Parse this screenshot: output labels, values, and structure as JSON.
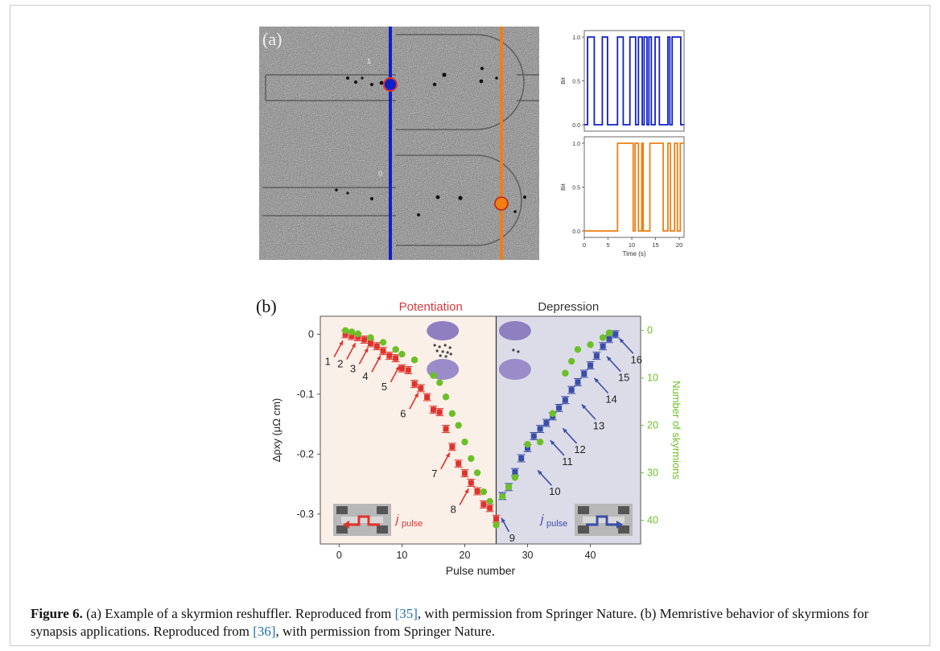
{
  "panel_a": {
    "label": "(a)",
    "image_labels": [
      "1",
      "0"
    ],
    "colors": {
      "blue": "#1020c8",
      "orange": "#f07f14"
    }
  },
  "panel_b": {
    "label": "(b)",
    "region_left_title": "Potentiation",
    "region_right_title": "Depression",
    "left_legend_label": "j",
    "left_legend_sub": "pulse",
    "right_legend_label": "j",
    "right_legend_sub": "pulse",
    "colors": {
      "red": "#e0322c",
      "blue": "#3a4ea8",
      "green": "#6cc027",
      "potentiation_bg": "#fbf0e8",
      "depression_bg": "#dcdce8"
    }
  },
  "caption": {
    "figure_label": "Figure 6.",
    "text_1": " (a) Example of a skyrmion reshuffler. Reproduced from ",
    "ref_1": "[35]",
    "text_2": ", with permission from Springer Nature. (b) Memristive behavior of skyrmions for synapsis applications. Reproduced from ",
    "ref_2": "[36]",
    "text_3": ", with permission from Springer Nature."
  },
  "chart_data": [
    {
      "type": "line",
      "panel": "a-top",
      "xlabel": "",
      "ylabel": "Bit",
      "xlim": [
        0,
        21
      ],
      "ylim": [
        0,
        1
      ],
      "yticks": [
        "0.0",
        "0.5",
        "1.0"
      ],
      "x": [
        0,
        0.7,
        0.7,
        2.1,
        2.1,
        3.8,
        3.8,
        4.9,
        4.9,
        7.0,
        7.0,
        8.2,
        8.2,
        9.6,
        9.6,
        10.8,
        10.8,
        11.4,
        11.4,
        12.2,
        12.2,
        12.6,
        12.6,
        13.2,
        13.2,
        13.6,
        13.6,
        14.1,
        14.1,
        14.9,
        14.9,
        15.8,
        15.8,
        17.6,
        17.6,
        18.0,
        18.0,
        18.5,
        18.5,
        20.3,
        20.3,
        21
      ],
      "series": [
        {
          "name": "",
          "color": "#1020c8",
          "values": [
            0,
            0,
            1,
            1,
            0,
            0,
            1,
            1,
            0,
            0,
            1,
            1,
            0,
            0,
            1,
            1,
            0,
            0,
            1,
            1,
            0,
            0,
            1,
            1,
            0,
            0,
            1,
            1,
            0,
            0,
            1,
            1,
            0,
            0,
            1,
            1,
            0,
            0,
            1,
            1,
            0,
            0
          ]
        }
      ]
    },
    {
      "type": "line",
      "panel": "a-bottom",
      "xlabel": "Time (s)",
      "ylabel": "Bit",
      "xlim": [
        0,
        21
      ],
      "ylim": [
        0,
        1
      ],
      "xticks": [
        "0",
        "5",
        "10",
        "15",
        "20"
      ],
      "yticks": [
        "0.0",
        "0.5",
        "1.0"
      ],
      "x": [
        0,
        7.0,
        7.0,
        10.3,
        10.3,
        10.7,
        10.7,
        11.4,
        11.4,
        12.1,
        12.1,
        12.4,
        12.4,
        13.8,
        13.8,
        16.6,
        16.6,
        17.6,
        17.6,
        18.1,
        18.1,
        19.0,
        19.0,
        19.6,
        19.6,
        20.2,
        20.2,
        21
      ],
      "series": [
        {
          "name": "",
          "color": "#f07f14",
          "values": [
            0,
            0,
            1,
            1,
            0,
            0,
            1,
            1,
            0,
            0,
            1,
            1,
            0,
            0,
            1,
            1,
            0,
            0,
            1,
            1,
            0,
            0,
            1,
            1,
            0,
            0,
            1,
            1
          ]
        }
      ]
    },
    {
      "type": "scatter",
      "panel": "b",
      "xlabel": "Pulse number",
      "ylabel": "Δρxy (μΩ cm)",
      "y2label": "Number of skyrmions",
      "xlim": [
        -3,
        48
      ],
      "ylim": [
        -0.35,
        0.03
      ],
      "y2lim": [
        45,
        -3
      ],
      "xticks": [
        "0",
        "10",
        "20",
        "30",
        "40"
      ],
      "yticks": [
        "0",
        "-0.1",
        "-0.2",
        "-0.3"
      ],
      "y2ticks": [
        "0",
        "10",
        "20",
        "30",
        "40"
      ],
      "divider_x": 25,
      "series": [
        {
          "name": "",
          "marker": "square",
          "axis": "left",
          "color": "#e0322c",
          "x": [
            1,
            2,
            3,
            4,
            5,
            6,
            7,
            8,
            9,
            10,
            11,
            12,
            13,
            14,
            15,
            16,
            17,
            18,
            19,
            20,
            21,
            22,
            23,
            24,
            25
          ],
          "y": [
            0,
            -0.003,
            -0.005,
            -0.009,
            -0.015,
            -0.02,
            -0.028,
            -0.036,
            -0.04,
            -0.057,
            -0.06,
            -0.083,
            -0.09,
            -0.105,
            -0.126,
            -0.13,
            -0.158,
            -0.188,
            -0.216,
            -0.232,
            -0.248,
            -0.262,
            -0.284,
            -0.29,
            -0.308
          ],
          "err": [
            0.006,
            0.006,
            0.006,
            0.006,
            0.006,
            0.006,
            0.006,
            0.006,
            0.006,
            0.006,
            0.006,
            0.006,
            0.006,
            0.006,
            0.006,
            0.006,
            0.006,
            0.006,
            0.006,
            0.006,
            0.006,
            0.006,
            0.006,
            0.006,
            0.006
          ]
        },
        {
          "name": "",
          "marker": "square",
          "axis": "left",
          "color": "#3a4ea8",
          "x": [
            26,
            27,
            28,
            29,
            30,
            31,
            32,
            33,
            34,
            35,
            36,
            37,
            38,
            39,
            40,
            41,
            42,
            43,
            44
          ],
          "y": [
            -0.27,
            -0.255,
            -0.23,
            -0.207,
            -0.19,
            -0.17,
            -0.158,
            -0.148,
            -0.137,
            -0.123,
            -0.11,
            -0.093,
            -0.08,
            -0.066,
            -0.052,
            -0.036,
            -0.02,
            -0.008,
            0
          ],
          "err": [
            0.006,
            0.006,
            0.006,
            0.006,
            0.006,
            0.006,
            0.006,
            0.006,
            0.006,
            0.006,
            0.006,
            0.006,
            0.006,
            0.006,
            0.006,
            0.006,
            0.006,
            0.006,
            0.006
          ]
        },
        {
          "name": "",
          "marker": "circle",
          "axis": "right",
          "color": "#6cc027",
          "x": [
            1,
            2,
            3,
            5,
            7,
            9,
            10,
            12,
            15,
            16,
            17,
            18,
            19,
            20,
            21,
            22,
            23,
            24,
            25,
            26,
            27,
            28,
            30,
            32,
            34,
            36,
            37,
            38,
            40,
            42,
            43
          ],
          "y": [
            0,
            0.3,
            0.7,
            1.5,
            2.5,
            4,
            5,
            6.2,
            9.5,
            11,
            14,
            17.5,
            20,
            23.5,
            27,
            30,
            34,
            36,
            41,
            35,
            33,
            31,
            24,
            23.5,
            17.5,
            9,
            6.5,
            4,
            3,
            1.5,
            0.5
          ]
        }
      ],
      "annotations": [
        {
          "label": "1",
          "color": "#e0322c",
          "x": 1,
          "y": -0.003
        },
        {
          "label": "2",
          "color": "#e0322c",
          "x": 3,
          "y": -0.007
        },
        {
          "label": "3",
          "color": "#e0322c",
          "x": 5,
          "y": -0.015
        },
        {
          "label": "4",
          "color": "#e0322c",
          "x": 7,
          "y": -0.028
        },
        {
          "label": "5",
          "color": "#e0322c",
          "x": 10,
          "y": -0.045
        },
        {
          "label": "6",
          "color": "#e0322c",
          "x": 13,
          "y": -0.09
        },
        {
          "label": "7",
          "color": "#e0322c",
          "x": 18,
          "y": -0.19
        },
        {
          "label": "8",
          "color": "#e0322c",
          "x": 21,
          "y": -0.25
        },
        {
          "label": "9",
          "color": "#3a4ea8",
          "x": 25.5,
          "y": -0.3
        },
        {
          "label": "10",
          "color": "#3a4ea8",
          "x": 31,
          "y": -0.22
        },
        {
          "label": "11",
          "color": "#3a4ea8",
          "x": 33,
          "y": -0.17
        },
        {
          "label": "12",
          "color": "#3a4ea8",
          "x": 35,
          "y": -0.15
        },
        {
          "label": "13",
          "color": "#3a4ea8",
          "x": 38,
          "y": -0.11
        },
        {
          "label": "14",
          "color": "#3a4ea8",
          "x": 40,
          "y": -0.066
        },
        {
          "label": "15",
          "color": "#3a4ea8",
          "x": 42,
          "y": -0.03
        },
        {
          "label": "16",
          "color": "#3a4ea8",
          "x": 44,
          "y": 0
        }
      ]
    }
  ]
}
